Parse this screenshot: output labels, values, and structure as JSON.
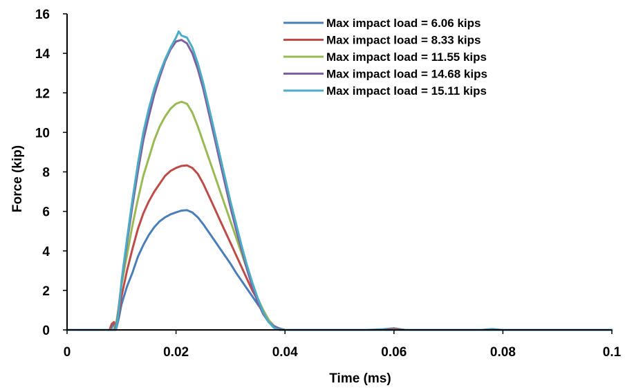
{
  "chart_data": {
    "type": "line",
    "xlabel": "Time (ms)",
    "ylabel": "Force (kip)",
    "xlim": [
      0,
      0.1
    ],
    "ylim": [
      0,
      16
    ],
    "x_ticks": [
      0,
      0.02,
      0.04,
      0.06,
      0.08,
      0.1
    ],
    "x_tick_labels": [
      "0",
      "0.02",
      "0.04",
      "0.06",
      "0.08",
      "0.1"
    ],
    "y_ticks": [
      0,
      2,
      4,
      6,
      8,
      10,
      12,
      14,
      16
    ],
    "y_tick_labels": [
      "0",
      "2",
      "4",
      "6",
      "8",
      "10",
      "12",
      "14",
      "16"
    ],
    "grid": false,
    "legend_position": "top-right",
    "series": [
      {
        "name": "Max impact load = 6.06 kips",
        "color": "#4A7EBB",
        "points": [
          [
            0,
            0
          ],
          [
            0.008,
            0
          ],
          [
            0.0085,
            0.3
          ],
          [
            0.009,
            0.02
          ],
          [
            0.0095,
            0.6
          ],
          [
            0.01,
            1.3
          ],
          [
            0.011,
            2.2
          ],
          [
            0.012,
            2.9
          ],
          [
            0.013,
            3.7
          ],
          [
            0.014,
            4.3
          ],
          [
            0.015,
            4.8
          ],
          [
            0.016,
            5.2
          ],
          [
            0.017,
            5.5
          ],
          [
            0.018,
            5.7
          ],
          [
            0.019,
            5.85
          ],
          [
            0.02,
            5.95
          ],
          [
            0.021,
            6.04
          ],
          [
            0.022,
            6.06
          ],
          [
            0.023,
            5.95
          ],
          [
            0.024,
            5.7
          ],
          [
            0.025,
            5.35
          ],
          [
            0.026,
            4.95
          ],
          [
            0.027,
            4.55
          ],
          [
            0.028,
            4.15
          ],
          [
            0.029,
            3.75
          ],
          [
            0.03,
            3.35
          ],
          [
            0.031,
            2.9
          ],
          [
            0.032,
            2.5
          ],
          [
            0.033,
            2.1
          ],
          [
            0.034,
            1.7
          ],
          [
            0.035,
            1.3
          ],
          [
            0.036,
            0.9
          ],
          [
            0.037,
            0.5
          ],
          [
            0.038,
            0.2
          ],
          [
            0.039,
            0.07
          ],
          [
            0.04,
            0
          ],
          [
            0.055,
            0
          ],
          [
            0.058,
            0.03
          ],
          [
            0.06,
            0.08
          ],
          [
            0.062,
            0
          ],
          [
            0.076,
            0
          ],
          [
            0.078,
            0.04
          ],
          [
            0.08,
            0
          ],
          [
            0.1,
            0
          ]
        ]
      },
      {
        "name": "Max impact load = 8.33 kips",
        "color": "#BE4B48",
        "points": [
          [
            0,
            0
          ],
          [
            0.0078,
            0
          ],
          [
            0.0082,
            0.3
          ],
          [
            0.0086,
            0.4
          ],
          [
            0.009,
            0.1
          ],
          [
            0.0095,
            0.8
          ],
          [
            0.01,
            1.7
          ],
          [
            0.011,
            3.0
          ],
          [
            0.012,
            4.1
          ],
          [
            0.013,
            5.1
          ],
          [
            0.014,
            5.9
          ],
          [
            0.015,
            6.5
          ],
          [
            0.016,
            7.0
          ],
          [
            0.017,
            7.4
          ],
          [
            0.018,
            7.8
          ],
          [
            0.019,
            8.05
          ],
          [
            0.02,
            8.2
          ],
          [
            0.021,
            8.3
          ],
          [
            0.022,
            8.33
          ],
          [
            0.023,
            8.2
          ],
          [
            0.024,
            7.9
          ],
          [
            0.025,
            7.4
          ],
          [
            0.026,
            6.8
          ],
          [
            0.027,
            6.2
          ],
          [
            0.028,
            5.6
          ],
          [
            0.029,
            5.0
          ],
          [
            0.03,
            4.4
          ],
          [
            0.031,
            3.8
          ],
          [
            0.032,
            3.2
          ],
          [
            0.033,
            2.6
          ],
          [
            0.034,
            2.0
          ],
          [
            0.035,
            1.5
          ],
          [
            0.036,
            1.0
          ],
          [
            0.037,
            0.5
          ],
          [
            0.038,
            0.15
          ],
          [
            0.039,
            0.03
          ],
          [
            0.04,
            0
          ],
          [
            0.058,
            0
          ],
          [
            0.06,
            0.05
          ],
          [
            0.062,
            0
          ],
          [
            0.1,
            0
          ]
        ]
      },
      {
        "name": "Max impact load = 11.55 kips",
        "color": "#98B954",
        "points": [
          [
            0,
            0
          ],
          [
            0.0085,
            0
          ],
          [
            0.009,
            0.3
          ],
          [
            0.0095,
            1.2
          ],
          [
            0.01,
            2.3
          ],
          [
            0.011,
            3.8
          ],
          [
            0.012,
            5.3
          ],
          [
            0.013,
            6.6
          ],
          [
            0.014,
            7.8
          ],
          [
            0.015,
            8.7
          ],
          [
            0.016,
            9.6
          ],
          [
            0.017,
            10.3
          ],
          [
            0.018,
            10.8
          ],
          [
            0.019,
            11.2
          ],
          [
            0.02,
            11.45
          ],
          [
            0.021,
            11.55
          ],
          [
            0.022,
            11.45
          ],
          [
            0.023,
            11.0
          ],
          [
            0.024,
            10.3
          ],
          [
            0.025,
            9.5
          ],
          [
            0.026,
            8.7
          ],
          [
            0.027,
            7.9
          ],
          [
            0.028,
            7.1
          ],
          [
            0.029,
            6.3
          ],
          [
            0.03,
            5.5
          ],
          [
            0.031,
            4.7
          ],
          [
            0.032,
            3.9
          ],
          [
            0.033,
            3.1
          ],
          [
            0.034,
            2.3
          ],
          [
            0.035,
            1.6
          ],
          [
            0.036,
            1.0
          ],
          [
            0.037,
            0.5
          ],
          [
            0.038,
            0.15
          ],
          [
            0.039,
            0.05
          ],
          [
            0.04,
            0
          ],
          [
            0.1,
            0
          ]
        ]
      },
      {
        "name": "Max impact load = 14.68 kips",
        "color": "#7D60A0",
        "points": [
          [
            0,
            0
          ],
          [
            0.0088,
            0
          ],
          [
            0.0092,
            0.5
          ],
          [
            0.0096,
            1.4
          ],
          [
            0.01,
            2.4
          ],
          [
            0.011,
            4.4
          ],
          [
            0.012,
            6.3
          ],
          [
            0.013,
            8.0
          ],
          [
            0.014,
            9.6
          ],
          [
            0.015,
            10.8
          ],
          [
            0.016,
            11.9
          ],
          [
            0.017,
            12.8
          ],
          [
            0.018,
            13.6
          ],
          [
            0.019,
            14.2
          ],
          [
            0.02,
            14.6
          ],
          [
            0.021,
            14.68
          ],
          [
            0.022,
            14.5
          ],
          [
            0.023,
            14.0
          ],
          [
            0.024,
            13.2
          ],
          [
            0.025,
            12.2
          ],
          [
            0.026,
            11.0
          ],
          [
            0.027,
            9.8
          ],
          [
            0.028,
            8.6
          ],
          [
            0.029,
            7.4
          ],
          [
            0.03,
            6.2
          ],
          [
            0.031,
            5.1
          ],
          [
            0.032,
            4.1
          ],
          [
            0.033,
            3.1
          ],
          [
            0.034,
            2.2
          ],
          [
            0.035,
            1.4
          ],
          [
            0.036,
            0.8
          ],
          [
            0.037,
            0.4
          ],
          [
            0.038,
            0.15
          ],
          [
            0.039,
            0.05
          ],
          [
            0.04,
            0
          ],
          [
            0.1,
            0
          ]
        ]
      },
      {
        "name": "Max impact load = 15.11 kips",
        "color": "#4BACC6",
        "points": [
          [
            0,
            0
          ],
          [
            0.009,
            0
          ],
          [
            0.0094,
            0.8
          ],
          [
            0.0098,
            1.8
          ],
          [
            0.01,
            2.5
          ],
          [
            0.011,
            4.6
          ],
          [
            0.012,
            6.6
          ],
          [
            0.013,
            8.4
          ],
          [
            0.014,
            10.0
          ],
          [
            0.015,
            11.2
          ],
          [
            0.016,
            12.2
          ],
          [
            0.017,
            13.0
          ],
          [
            0.018,
            13.7
          ],
          [
            0.019,
            14.3
          ],
          [
            0.02,
            14.8
          ],
          [
            0.0205,
            15.11
          ],
          [
            0.021,
            14.9
          ],
          [
            0.022,
            14.8
          ],
          [
            0.023,
            14.3
          ],
          [
            0.024,
            13.5
          ],
          [
            0.025,
            12.5
          ],
          [
            0.026,
            11.3
          ],
          [
            0.027,
            10.1
          ],
          [
            0.028,
            8.9
          ],
          [
            0.029,
            7.7
          ],
          [
            0.03,
            6.5
          ],
          [
            0.031,
            5.4
          ],
          [
            0.032,
            4.3
          ],
          [
            0.033,
            3.3
          ],
          [
            0.034,
            2.4
          ],
          [
            0.035,
            1.6
          ],
          [
            0.036,
            0.9
          ],
          [
            0.037,
            0.4
          ],
          [
            0.038,
            0.1
          ],
          [
            0.039,
            0
          ],
          [
            0.1,
            0
          ]
        ]
      }
    ]
  }
}
